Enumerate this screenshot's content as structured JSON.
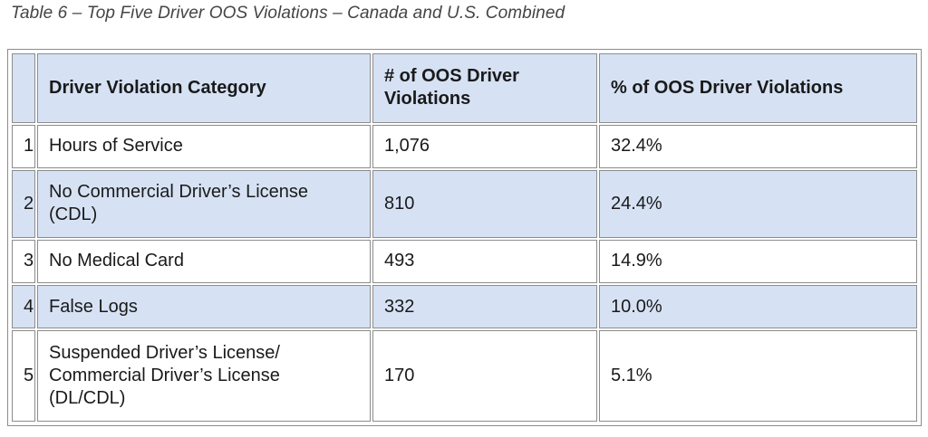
{
  "caption": "Table 6 – Top Five Driver OOS Violations – Canada and U.S. Combined",
  "table": {
    "headers": [
      "",
      "Driver Violation Category",
      "# of OOS Driver Violations",
      "% of OOS Driver Violations"
    ],
    "rows": [
      {
        "rank": "1",
        "category": "Hours of Service",
        "count": "1,076",
        "percent": "32.4%"
      },
      {
        "rank": "2",
        "category": "No Commercial Driver’s License (CDL)",
        "count": "810",
        "percent": "24.4%"
      },
      {
        "rank": "3",
        "category": "No Medical Card",
        "count": "493",
        "percent": "14.9%"
      },
      {
        "rank": "4",
        "category": "False Logs",
        "count": "332",
        "percent": "10.0%"
      },
      {
        "rank": "5",
        "category": "Suspended Driver’s License/ Commercial Driver’s License (DL/CDL)",
        "count": "170",
        "percent": "5.1%"
      }
    ]
  },
  "colors": {
    "shaded_row": "#d6e2f4",
    "border": "#8c8c8c",
    "caption_text": "#444444"
  }
}
